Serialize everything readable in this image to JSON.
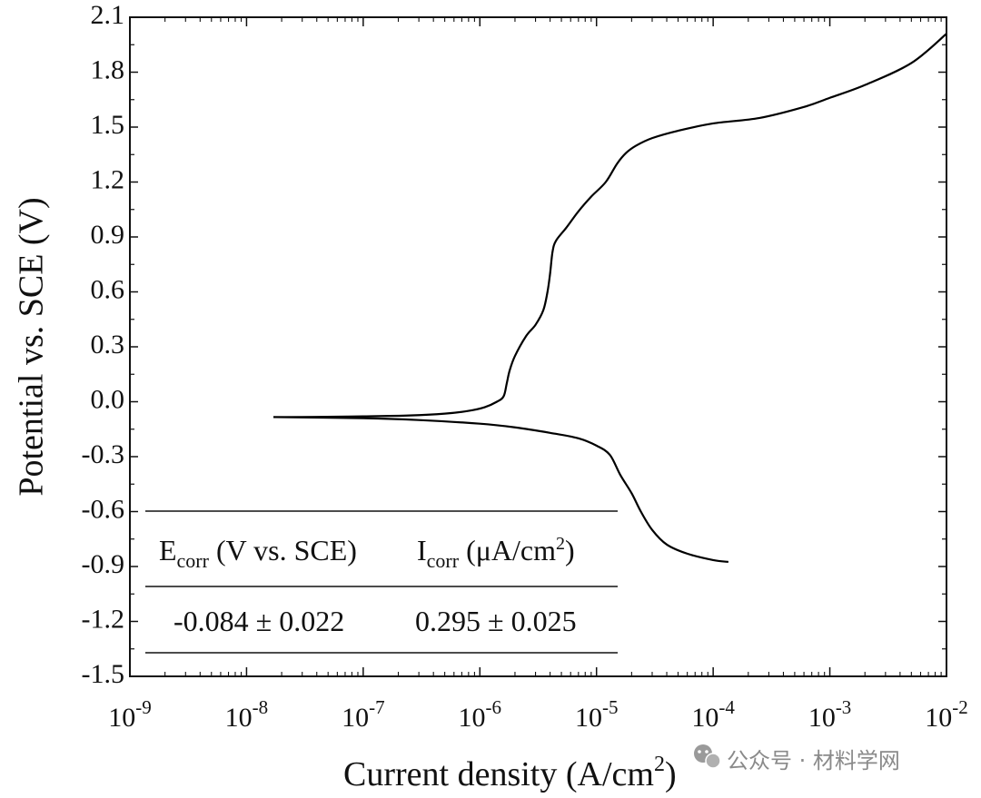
{
  "chart_data": {
    "type": "line",
    "xlabel": "Current density (A/cm",
    "xlabel_sup": "2",
    "xlabel_end": ")",
    "ylabel": "Potential vs. SCE (V)",
    "x_scale": "log",
    "xlim": [
      1e-09,
      0.01
    ],
    "ylim": [
      -1.5,
      2.1
    ],
    "yticks": [
      2.1,
      1.8,
      1.5,
      1.2,
      0.9,
      0.6,
      0.3,
      0.0,
      -0.3,
      -0.6,
      -0.9,
      -1.2,
      -1.5
    ],
    "ytick_labels": [
      "2.1",
      "1.8",
      "1.5",
      "1.2",
      "0.9",
      "0.6",
      "0.3",
      "0.0",
      "-0.3",
      "-0.6",
      "-0.9",
      "-1.2",
      "-1.5"
    ],
    "xtick_exponents": [
      "-9",
      "-8",
      "-7",
      "-6",
      "-5",
      "-4",
      "-3",
      "-2"
    ],
    "xtick_base": "10",
    "grid": false,
    "legend": "none",
    "series": [
      {
        "line_color": "#000000",
        "x": [
          1.7e-08,
          4e-08,
          1e-07,
          2.5e-07,
          5e-07,
          8e-07,
          1.1e-06,
          1.4e-06,
          1.6e-06,
          1.7e-06,
          1.8e-06,
          2e-06,
          2.5e-06,
          3e-06,
          3.5e-06,
          3.8e-06,
          4e-06,
          4.2e-06,
          4.5e-06,
          5.5e-06,
          7e-06,
          9e-06,
          1.2e-05,
          1.5e-05,
          1.8e-05,
          2.2e-05,
          3e-05,
          5e-05,
          0.0001,
          0.00025,
          0.0006,
          0.001,
          0.002,
          0.005,
          0.01
        ],
        "y": [
          -0.084,
          -0.083,
          -0.08,
          -0.075,
          -0.065,
          -0.05,
          -0.03,
          0.0,
          0.03,
          0.1,
          0.17,
          0.25,
          0.36,
          0.42,
          0.5,
          0.6,
          0.7,
          0.82,
          0.88,
          0.95,
          1.04,
          1.12,
          1.2,
          1.3,
          1.36,
          1.4,
          1.44,
          1.48,
          1.52,
          1.55,
          1.61,
          1.66,
          1.73,
          1.85,
          2.01
        ]
      },
      {
        "line_color": "#000000",
        "x": [
          1.7e-08,
          1e-07,
          3e-07,
          1e-06,
          2e-06,
          4e-06,
          7e-06,
          1e-05,
          1.3e-05,
          1.6e-05,
          2e-05,
          2.4e-05,
          3e-05,
          4e-05,
          6e-05,
          0.0001,
          0.000135
        ],
        "y": [
          -0.084,
          -0.09,
          -0.1,
          -0.12,
          -0.14,
          -0.17,
          -0.2,
          -0.24,
          -0.29,
          -0.4,
          -0.5,
          -0.6,
          -0.7,
          -0.78,
          -0.83,
          -0.865,
          -0.875
        ]
      }
    ]
  },
  "table": {
    "col1_header": "E",
    "col1_header_sub": "corr",
    "col1_header_rest": " (V vs. SCE)",
    "col2_header": "I",
    "col2_header_sub": "corr",
    "col2_header_rest": " (μA/cm",
    "col2_header_sup": "2",
    "col2_header_end": ")",
    "col1_value": "-0.084 ± 0.022",
    "col2_value": "0.295 ± 0.025"
  },
  "watermark": {
    "text": "公众号 · 材料学网",
    "icon": "wechat-icon"
  }
}
